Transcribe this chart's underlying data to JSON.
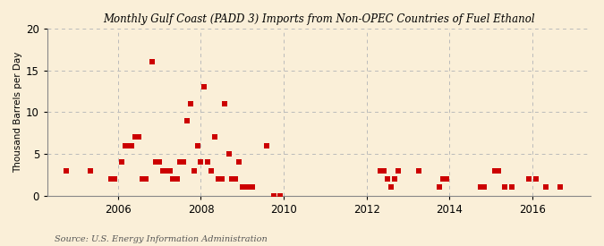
{
  "title": "Monthly Gulf Coast (PADD 3) Imports from Non-OPEC Countries of Fuel Ethanol",
  "ylabel": "Thousand Barrels per Day",
  "source": "Source: U.S. Energy Information Administration",
  "background_color": "#faefd8",
  "marker_color": "#cc0000",
  "marker_size": 18,
  "ylim": [
    0,
    20
  ],
  "yticks": [
    0,
    5,
    10,
    15,
    20
  ],
  "xlim_start": 2004.3,
  "xlim_end": 2017.4,
  "xticks": [
    2006,
    2008,
    2010,
    2012,
    2014,
    2016
  ],
  "grid_color": "#bbbbbb",
  "data_points": [
    [
      2004.75,
      3.0
    ],
    [
      2005.33,
      3.0
    ],
    [
      2005.83,
      2.0
    ],
    [
      2005.92,
      2.0
    ],
    [
      2006.08,
      4.0
    ],
    [
      2006.17,
      6.0
    ],
    [
      2006.25,
      6.0
    ],
    [
      2006.33,
      6.0
    ],
    [
      2006.42,
      7.0
    ],
    [
      2006.5,
      7.0
    ],
    [
      2006.58,
      2.0
    ],
    [
      2006.67,
      2.0
    ],
    [
      2006.83,
      16.0
    ],
    [
      2006.92,
      4.0
    ],
    [
      2007.0,
      4.0
    ],
    [
      2007.08,
      3.0
    ],
    [
      2007.17,
      3.0
    ],
    [
      2007.25,
      3.0
    ],
    [
      2007.33,
      2.0
    ],
    [
      2007.42,
      2.0
    ],
    [
      2007.5,
      4.0
    ],
    [
      2007.58,
      4.0
    ],
    [
      2007.67,
      9.0
    ],
    [
      2007.75,
      11.0
    ],
    [
      2007.83,
      3.0
    ],
    [
      2007.92,
      6.0
    ],
    [
      2008.0,
      4.0
    ],
    [
      2008.08,
      13.0
    ],
    [
      2008.17,
      4.0
    ],
    [
      2008.25,
      3.0
    ],
    [
      2008.33,
      7.0
    ],
    [
      2008.42,
      2.0
    ],
    [
      2008.5,
      2.0
    ],
    [
      2008.58,
      11.0
    ],
    [
      2008.67,
      5.0
    ],
    [
      2008.75,
      2.0
    ],
    [
      2008.83,
      2.0
    ],
    [
      2008.92,
      4.0
    ],
    [
      2009.0,
      1.0
    ],
    [
      2009.08,
      1.0
    ],
    [
      2009.17,
      1.0
    ],
    [
      2009.25,
      1.0
    ],
    [
      2009.58,
      6.0
    ],
    [
      2009.75,
      0.0
    ],
    [
      2009.92,
      0.0
    ],
    [
      2012.33,
      3.0
    ],
    [
      2012.42,
      3.0
    ],
    [
      2012.5,
      2.0
    ],
    [
      2012.58,
      1.0
    ],
    [
      2012.67,
      2.0
    ],
    [
      2012.75,
      3.0
    ],
    [
      2013.25,
      3.0
    ],
    [
      2013.75,
      1.0
    ],
    [
      2013.83,
      2.0
    ],
    [
      2013.92,
      2.0
    ],
    [
      2014.75,
      1.0
    ],
    [
      2014.83,
      1.0
    ],
    [
      2015.08,
      3.0
    ],
    [
      2015.17,
      3.0
    ],
    [
      2015.33,
      1.0
    ],
    [
      2015.5,
      1.0
    ],
    [
      2015.92,
      2.0
    ],
    [
      2016.08,
      2.0
    ],
    [
      2016.33,
      1.0
    ],
    [
      2016.67,
      1.0
    ]
  ]
}
